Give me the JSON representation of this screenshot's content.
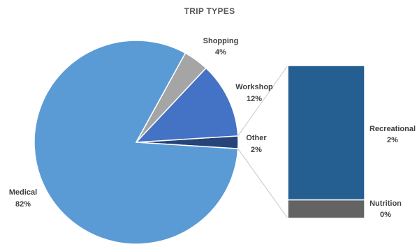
{
  "chart_data": {
    "type": "pie",
    "title": "TRIP TYPES",
    "slices": [
      {
        "name": "Medical",
        "value": 82,
        "label": "82%",
        "color": "#5b9bd5"
      },
      {
        "name": "Shopping",
        "value": 4,
        "label": "4%",
        "color": "#a5a5a5"
      },
      {
        "name": "Workshop",
        "value": 12,
        "label": "12%",
        "color": "#4472c4"
      },
      {
        "name": "Other",
        "value": 2,
        "label": "2%",
        "color": "#264478"
      }
    ],
    "breakdown": {
      "of": "Other",
      "type": "stacked-bar",
      "segments": [
        {
          "name": "Recreational",
          "value": 2,
          "label": "2%",
          "color": "#255e91"
        },
        {
          "name": "Nutrition",
          "value": 0,
          "label": "0%",
          "color": "#636363"
        }
      ]
    },
    "connector_color": "#c8c8c8"
  }
}
